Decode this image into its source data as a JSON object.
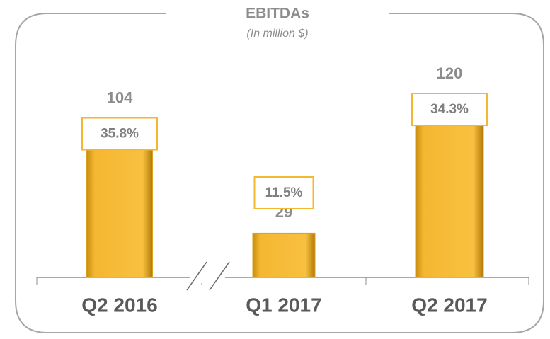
{
  "chart_data": {
    "type": "bar",
    "title": "EBITDAs",
    "subtitle": "(In million $)",
    "categories": [
      "Q2 2016",
      "Q1 2017",
      "Q2 2017"
    ],
    "values": [
      104,
      29,
      120
    ],
    "color": "#f5b731",
    "margins": {
      "values": [
        35.8,
        11.5,
        34.3
      ],
      "value_labels": [
        "35.8%",
        "11.5%",
        "34.3%"
      ]
    }
  }
}
